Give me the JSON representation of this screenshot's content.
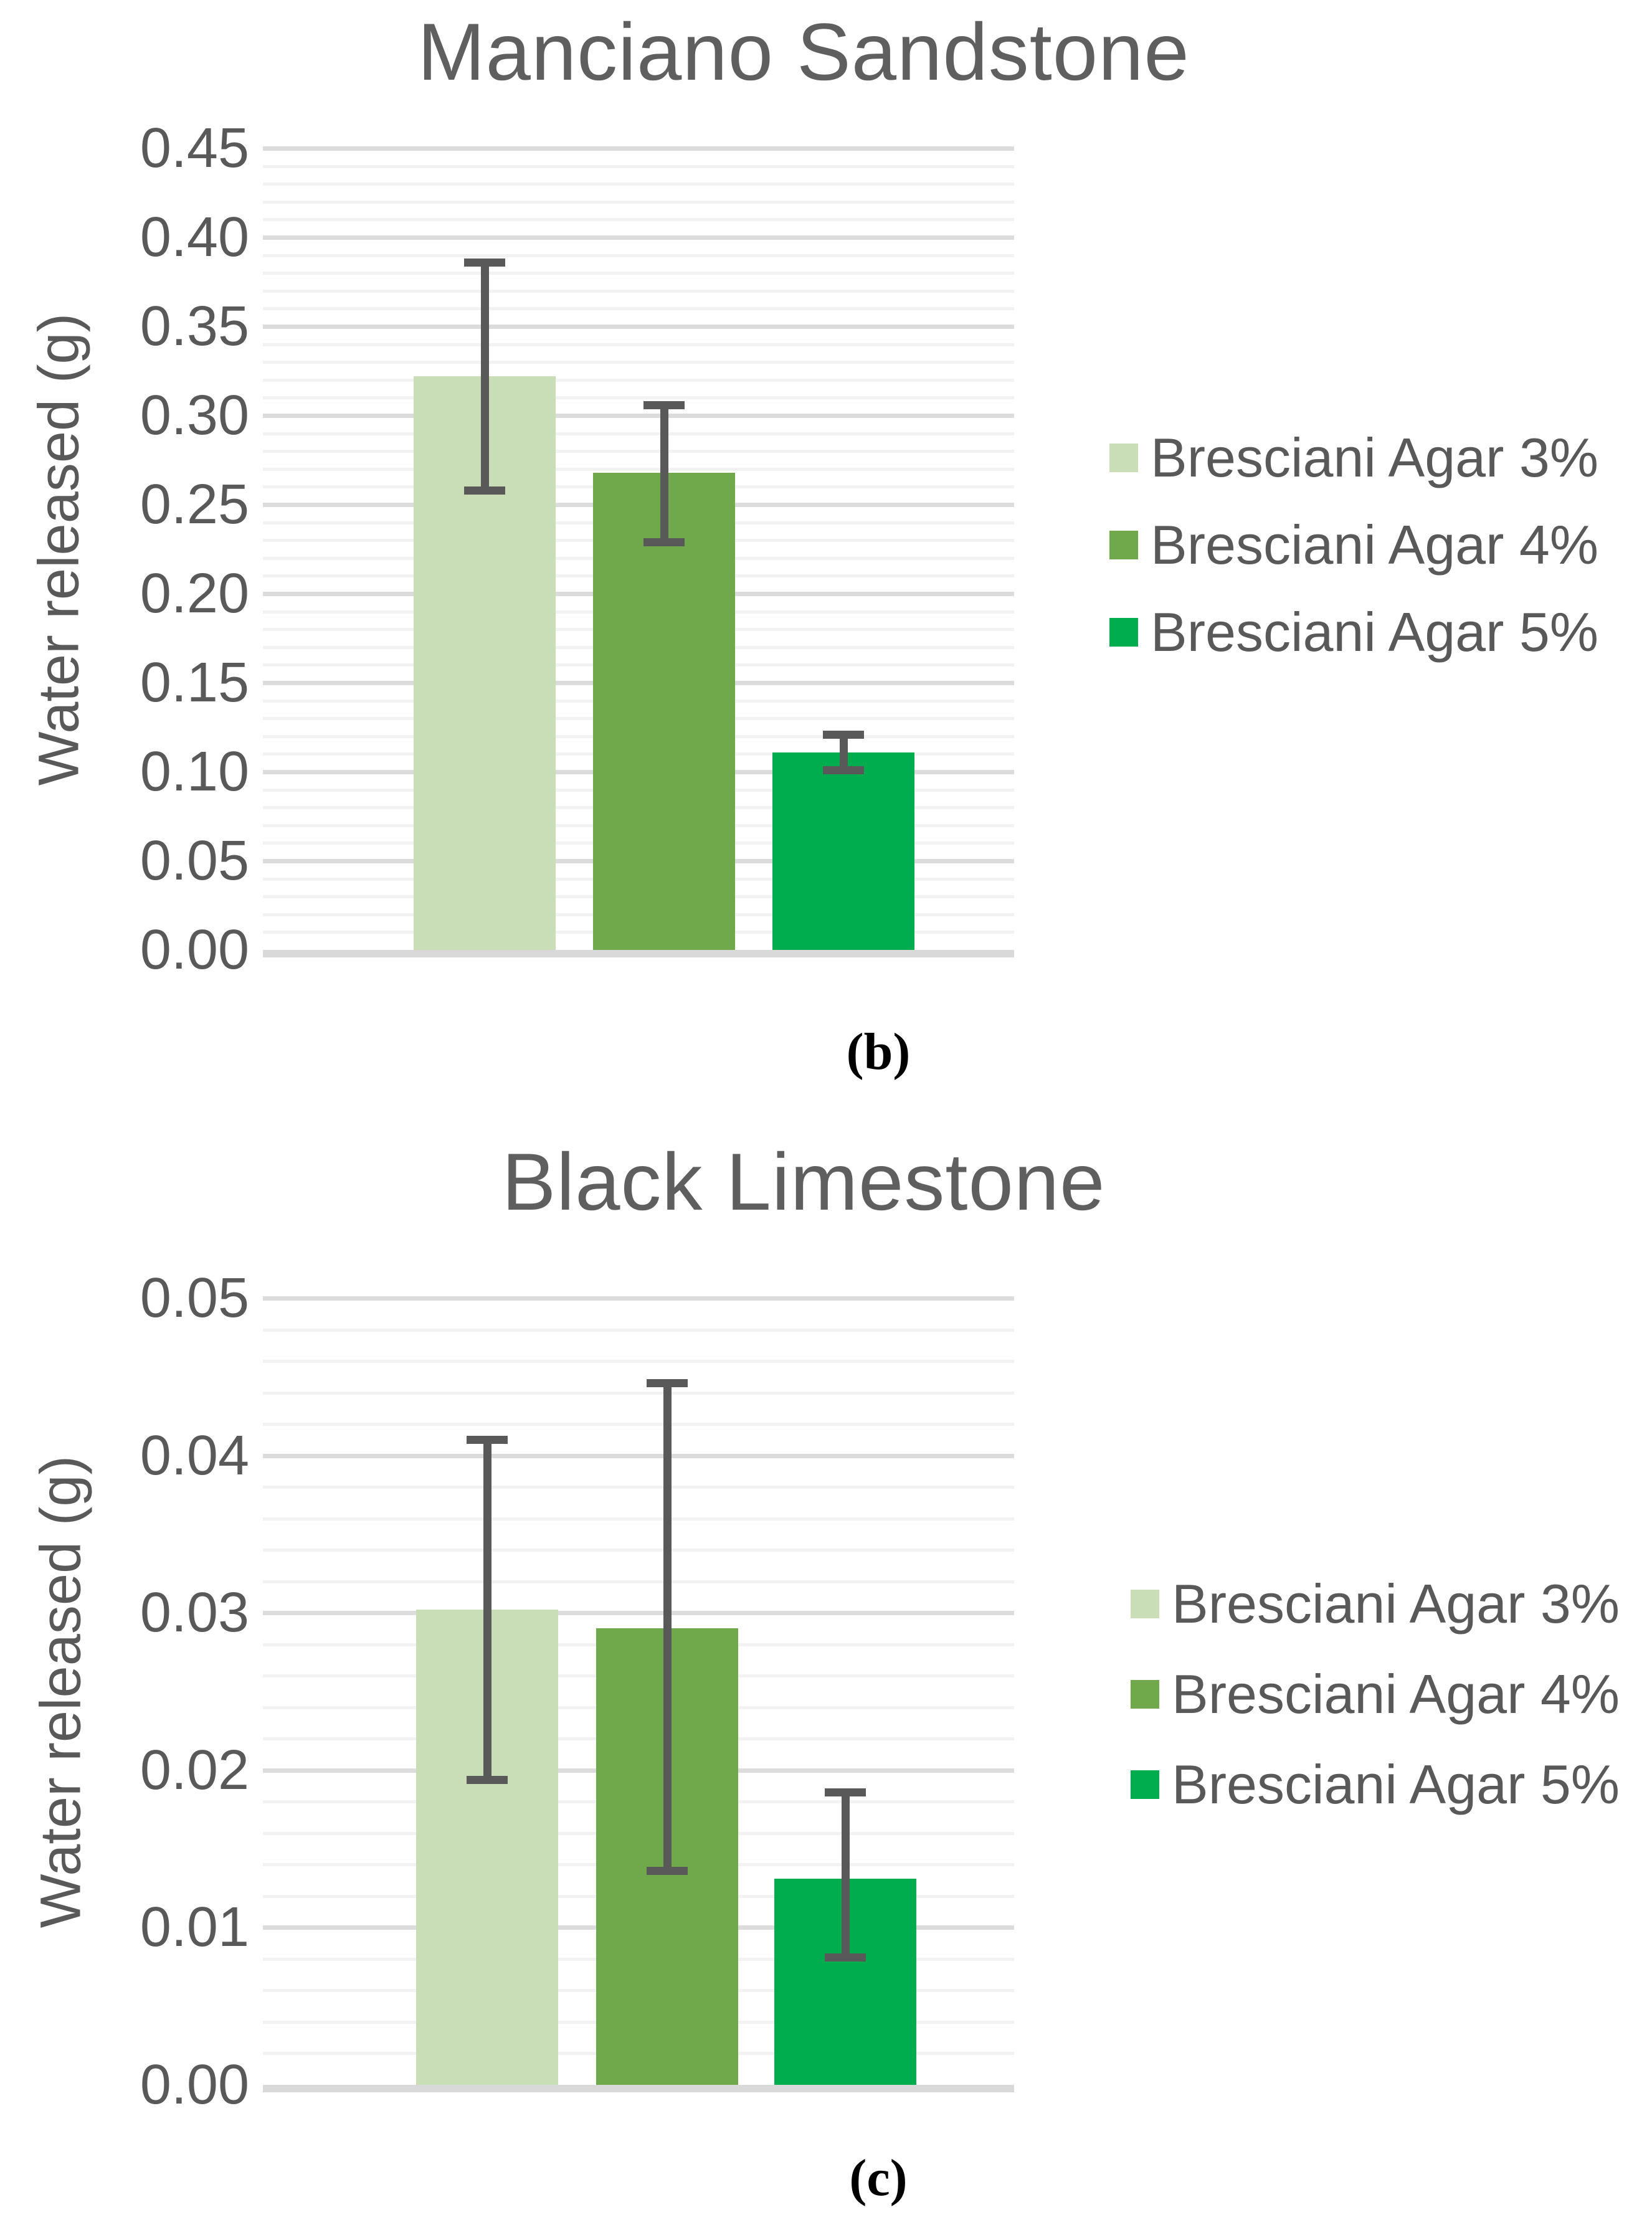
{
  "figure": {
    "background": "#ffffff",
    "text_color": "#595959",
    "title_color": "#5f5f5f",
    "gridline_minor_color": "#f2f2f2",
    "gridline_major_color": "#dcdcdc",
    "axis_line_color": "#d9d9d9",
    "error_bar_color": "#595959"
  },
  "chart_data": [
    {
      "type": "bar",
      "id": "b",
      "title": "Manciano Sandstone",
      "caption": "(b)",
      "xlabel": "",
      "ylabel": "Water released (g)",
      "ylim": [
        0.0,
        0.45
      ],
      "y_axis": {
        "title": "Water released (g)",
        "ticks": [
          "0.45",
          "0.40",
          "0.35",
          "0.30",
          "0.25",
          "0.20",
          "0.15",
          "0.10",
          "0.05",
          "0.00"
        ],
        "max": 0.45,
        "major_step": 0.05,
        "minor_step": 0.01
      },
      "grid": "on",
      "legend_position": "right",
      "series": [
        {
          "name": "Bresciani Agar 3%",
          "color": "#c9ddb6",
          "value": 0.322,
          "err_low": 0.258,
          "err_high": 0.386
        },
        {
          "name": "Bresciani Agar 4%",
          "color": "#6fa94b",
          "value": 0.268,
          "err_low": 0.229,
          "err_high": 0.306
        },
        {
          "name": "Bresciani Agar 5%",
          "color": "#00ad4e",
          "value": 0.111,
          "err_low": 0.101,
          "err_high": 0.121
        }
      ]
    },
    {
      "type": "bar",
      "id": "c",
      "title": "Black Limestone",
      "caption": "(c)",
      "xlabel": "",
      "ylabel": "Water released (g)",
      "ylim": [
        0.0,
        0.05
      ],
      "y_axis": {
        "title": "Water released (g)",
        "ticks": [
          "0.05",
          "0.04",
          "0.03",
          "0.02",
          "0.01",
          "0.00"
        ],
        "max": 0.05,
        "major_step": 0.01,
        "minor_step": 0.002
      },
      "grid": "on",
      "legend_position": "right",
      "series": [
        {
          "name": "Bresciani Agar 3%",
          "color": "#c9ddb6",
          "value": 0.0302,
          "err_low": 0.0194,
          "err_high": 0.041
        },
        {
          "name": "Bresciani Agar 4%",
          "color": "#6fa94b",
          "value": 0.029,
          "err_low": 0.0136,
          "err_high": 0.0446
        },
        {
          "name": "Bresciani Agar 5%",
          "color": "#00ad4e",
          "value": 0.0131,
          "err_low": 0.0081,
          "err_high": 0.0186
        }
      ]
    }
  ]
}
